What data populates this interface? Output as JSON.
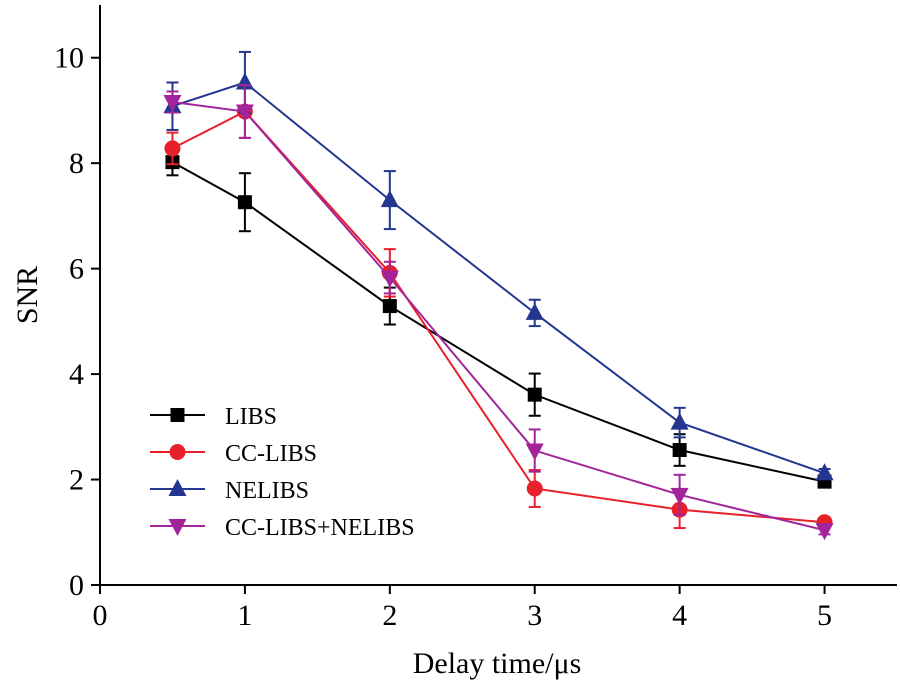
{
  "chart_data": {
    "type": "line",
    "title": "",
    "xlabel": "Delay time/μs",
    "ylabel": "SNR",
    "xlim": [
      0,
      5.5
    ],
    "ylim": [
      0,
      11
    ],
    "x_ticks": [
      0,
      1,
      2,
      3,
      4,
      5
    ],
    "y_ticks": [
      0,
      2,
      4,
      6,
      8,
      10
    ],
    "x_tick_labels": [
      "0",
      "1",
      "2",
      "3",
      "4",
      "5"
    ],
    "y_tick_labels": [
      "0",
      "2",
      "4",
      "6",
      "8",
      "10"
    ],
    "grid": false,
    "legend_position": "lower-left",
    "series": [
      {
        "name": "LIBS",
        "color": "#000000",
        "marker": "square",
        "x": [
          0.5,
          1,
          2,
          3,
          4,
          5
        ],
        "y": [
          8.02,
          7.26,
          5.29,
          3.61,
          2.56,
          1.96
        ],
        "err": [
          0.25,
          0.55,
          0.35,
          0.4,
          0.3,
          0.08
        ]
      },
      {
        "name": "CC-LIBS",
        "color": "#e8202a",
        "marker": "circle",
        "x": [
          0.5,
          1,
          2,
          3,
          4,
          5
        ],
        "y": [
          8.28,
          8.98,
          5.92,
          1.83,
          1.43,
          1.19
        ],
        "err": [
          0.3,
          0.5,
          0.45,
          0.35,
          0.35,
          0.08
        ]
      },
      {
        "name": "NELIBS",
        "color": "#24368f",
        "marker": "triangle-up",
        "x": [
          0.5,
          1,
          2,
          3,
          4,
          5
        ],
        "y": [
          9.08,
          9.53,
          7.3,
          5.16,
          3.08,
          2.12
        ],
        "err": [
          0.45,
          0.58,
          0.55,
          0.25,
          0.28,
          0.08
        ]
      },
      {
        "name": "CC-LIBS+NELIBS",
        "color": "#a3249a",
        "marker": "triangle-down",
        "x": [
          0.5,
          1,
          2,
          3,
          4,
          5
        ],
        "y": [
          9.16,
          8.98,
          5.83,
          2.55,
          1.71,
          1.04
        ],
        "err": [
          0.2,
          0.5,
          0.3,
          0.4,
          0.38,
          0.08
        ]
      }
    ]
  }
}
